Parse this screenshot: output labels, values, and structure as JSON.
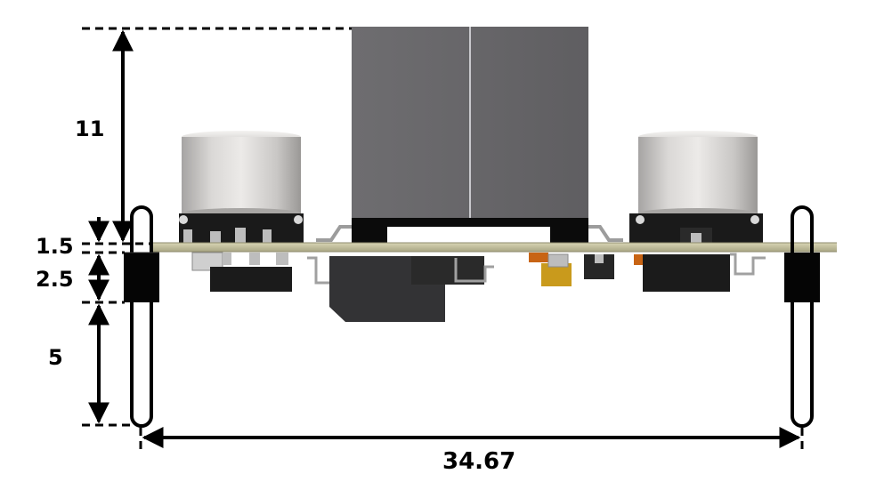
{
  "dimensions": {
    "vertical": [
      {
        "id": "height_above_board",
        "label": "11"
      },
      {
        "id": "board_thickness",
        "label": "1.5"
      },
      {
        "id": "height_below_board",
        "label": "2.5"
      },
      {
        "id": "pin_length",
        "label": "5"
      }
    ],
    "horizontal": [
      {
        "id": "pin_spacing",
        "label": "34.67"
      }
    ]
  },
  "colors": {
    "dimension_lines": "#000000",
    "pcb_board": "#c9c6a0",
    "capacitor_body": "#d6d4d2",
    "inductor_body": "#6a696b",
    "component_dark": "#1e1e1e",
    "solder_leads": "#a7a7a7",
    "tantalum_cap": "#c99a1c",
    "smd_orange": "#c86414"
  }
}
